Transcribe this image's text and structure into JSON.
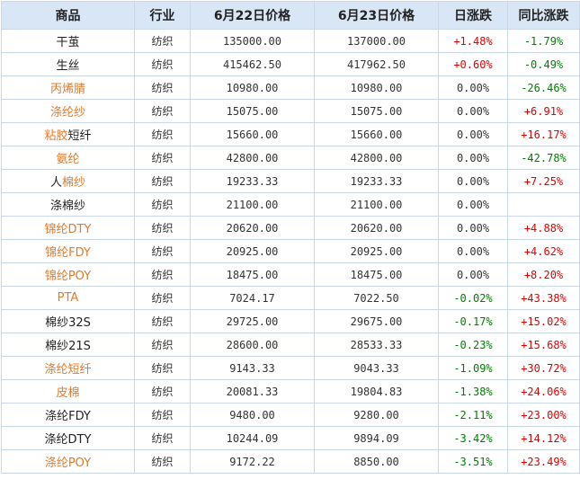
{
  "headers": [
    "商品",
    "行业",
    "6月22日价格",
    "6月23日价格",
    "日涨跌",
    "同比涨跌"
  ],
  "rows": [
    {
      "name": [
        {
          "t": "干茧",
          "c": "k"
        }
      ],
      "industry": "纺织",
      "p1": "135000.00",
      "p2": "137000.00",
      "day": "+1.48%",
      "day_dir": "up",
      "yoy": "-1.79%",
      "yoy_dir": "down"
    },
    {
      "name": [
        {
          "t": "生丝",
          "c": "k"
        }
      ],
      "industry": "纺织",
      "p1": "415462.50",
      "p2": "417962.50",
      "day": "+0.60%",
      "day_dir": "up",
      "yoy": "-0.49%",
      "yoy_dir": "down"
    },
    {
      "name": [
        {
          "t": "丙烯腈",
          "c": "c"
        }
      ],
      "industry": "纺织",
      "p1": "10980.00",
      "p2": "10980.00",
      "day": "0.00%",
      "day_dir": "flat",
      "yoy": "-26.46%",
      "yoy_dir": "down"
    },
    {
      "name": [
        {
          "t": "涤纶纱",
          "c": "c"
        }
      ],
      "industry": "纺织",
      "p1": "15075.00",
      "p2": "15075.00",
      "day": "0.00%",
      "day_dir": "flat",
      "yoy": "+6.91%",
      "yoy_dir": "up"
    },
    {
      "name": [
        {
          "t": "粘胶",
          "c": "c"
        },
        {
          "t": "短纤",
          "c": "k"
        }
      ],
      "industry": "纺织",
      "p1": "15660.00",
      "p2": "15660.00",
      "day": "0.00%",
      "day_dir": "flat",
      "yoy": "+16.17%",
      "yoy_dir": "up"
    },
    {
      "name": [
        {
          "t": "氨纶",
          "c": "c"
        }
      ],
      "industry": "纺织",
      "p1": "42800.00",
      "p2": "42800.00",
      "day": "0.00%",
      "day_dir": "flat",
      "yoy": "-42.78%",
      "yoy_dir": "down"
    },
    {
      "name": [
        {
          "t": "人",
          "c": "k"
        },
        {
          "t": "棉纱",
          "c": "c"
        }
      ],
      "industry": "纺织",
      "p1": "19233.33",
      "p2": "19233.33",
      "day": "0.00%",
      "day_dir": "flat",
      "yoy": "+7.25%",
      "yoy_dir": "up"
    },
    {
      "name": [
        {
          "t": "涤棉纱",
          "c": "k"
        }
      ],
      "industry": "纺织",
      "p1": "21100.00",
      "p2": "21100.00",
      "day": "0.00%",
      "day_dir": "flat",
      "yoy": "",
      "yoy_dir": "flat"
    },
    {
      "name": [
        {
          "t": "锦纶DTY",
          "c": "c"
        }
      ],
      "industry": "纺织",
      "p1": "20620.00",
      "p2": "20620.00",
      "day": "0.00%",
      "day_dir": "flat",
      "yoy": "+4.88%",
      "yoy_dir": "up"
    },
    {
      "name": [
        {
          "t": "锦纶FDY",
          "c": "c"
        }
      ],
      "industry": "纺织",
      "p1": "20925.00",
      "p2": "20925.00",
      "day": "0.00%",
      "day_dir": "flat",
      "yoy": "+4.62%",
      "yoy_dir": "up"
    },
    {
      "name": [
        {
          "t": "锦纶POY",
          "c": "c"
        }
      ],
      "industry": "纺织",
      "p1": "18475.00",
      "p2": "18475.00",
      "day": "0.00%",
      "day_dir": "flat",
      "yoy": "+8.20%",
      "yoy_dir": "up"
    },
    {
      "name": [
        {
          "t": "PTA",
          "c": "c"
        }
      ],
      "industry": "纺织",
      "p1": "7024.17",
      "p2": "7022.50",
      "day": "-0.02%",
      "day_dir": "down",
      "yoy": "+43.38%",
      "yoy_dir": "up"
    },
    {
      "name": [
        {
          "t": "棉纱32S",
          "c": "k"
        }
      ],
      "industry": "纺织",
      "p1": "29725.00",
      "p2": "29675.00",
      "day": "-0.17%",
      "day_dir": "down",
      "yoy": "+15.02%",
      "yoy_dir": "up"
    },
    {
      "name": [
        {
          "t": "棉纱21S",
          "c": "k"
        }
      ],
      "industry": "纺织",
      "p1": "28600.00",
      "p2": "28533.33",
      "day": "-0.23%",
      "day_dir": "down",
      "yoy": "+15.68%",
      "yoy_dir": "up"
    },
    {
      "name": [
        {
          "t": "涤纶短纤",
          "c": "c"
        }
      ],
      "industry": "纺织",
      "p1": "9143.33",
      "p2": "9043.33",
      "day": "-1.09%",
      "day_dir": "down",
      "yoy": "+30.72%",
      "yoy_dir": "up"
    },
    {
      "name": [
        {
          "t": "皮棉",
          "c": "c"
        }
      ],
      "industry": "纺织",
      "p1": "20081.33",
      "p2": "19804.83",
      "day": "-1.38%",
      "day_dir": "down",
      "yoy": "+24.06%",
      "yoy_dir": "up"
    },
    {
      "name": [
        {
          "t": "涤纶FDY",
          "c": "k"
        }
      ],
      "industry": "纺织",
      "p1": "9480.00",
      "p2": "9280.00",
      "day": "-2.11%",
      "day_dir": "down",
      "yoy": "+23.00%",
      "yoy_dir": "up"
    },
    {
      "name": [
        {
          "t": "涤纶DTY",
          "c": "k"
        }
      ],
      "industry": "纺织",
      "p1": "10244.09",
      "p2": "9894.09",
      "day": "-3.42%",
      "day_dir": "down",
      "yoy": "+14.12%",
      "yoy_dir": "up"
    },
    {
      "name": [
        {
          "t": "涤纶POY",
          "c": "c"
        }
      ],
      "industry": "纺织",
      "p1": "9172.22",
      "p2": "8850.00",
      "day": "-3.51%",
      "day_dir": "down",
      "yoy": "+23.49%",
      "yoy_dir": "up"
    }
  ],
  "colors": {
    "header_bg": "#d8e6f5",
    "border": "#c9d7e6",
    "link": "#e07a2e",
    "up": "#e00000",
    "down": "#008000"
  }
}
